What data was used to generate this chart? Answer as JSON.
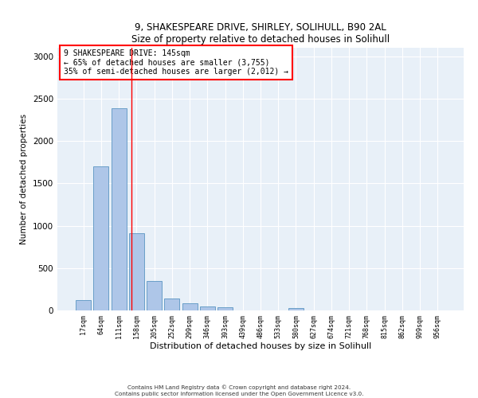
{
  "title1": "9, SHAKESPEARE DRIVE, SHIRLEY, SOLIHULL, B90 2AL",
  "title2": "Size of property relative to detached houses in Solihull",
  "xlabel": "Distribution of detached houses by size in Solihull",
  "ylabel": "Number of detached properties",
  "bar_labels": [
    "17sqm",
    "64sqm",
    "111sqm",
    "158sqm",
    "205sqm",
    "252sqm",
    "299sqm",
    "346sqm",
    "393sqm",
    "439sqm",
    "486sqm",
    "533sqm",
    "580sqm",
    "627sqm",
    "674sqm",
    "721sqm",
    "768sqm",
    "815sqm",
    "862sqm",
    "909sqm",
    "956sqm"
  ],
  "bar_values": [
    120,
    1700,
    2390,
    910,
    350,
    145,
    80,
    50,
    40,
    0,
    0,
    0,
    30,
    0,
    0,
    0,
    0,
    0,
    0,
    0,
    0
  ],
  "bar_color": "#aec6e8",
  "bar_edge_color": "#6a9fc8",
  "annotation_text_line1": "9 SHAKESPEARE DRIVE: 145sqm",
  "annotation_text_line2": "← 65% of detached houses are smaller (3,755)",
  "annotation_text_line3": "35% of semi-detached houses are larger (2,012) →",
  "ylim": [
    0,
    3100
  ],
  "yticks": [
    0,
    500,
    1000,
    1500,
    2000,
    2500,
    3000
  ],
  "bg_color": "#e8f0f8",
  "footer1": "Contains HM Land Registry data © Crown copyright and database right 2024.",
  "footer2": "Contains public sector information licensed under the Open Government Licence v3.0."
}
